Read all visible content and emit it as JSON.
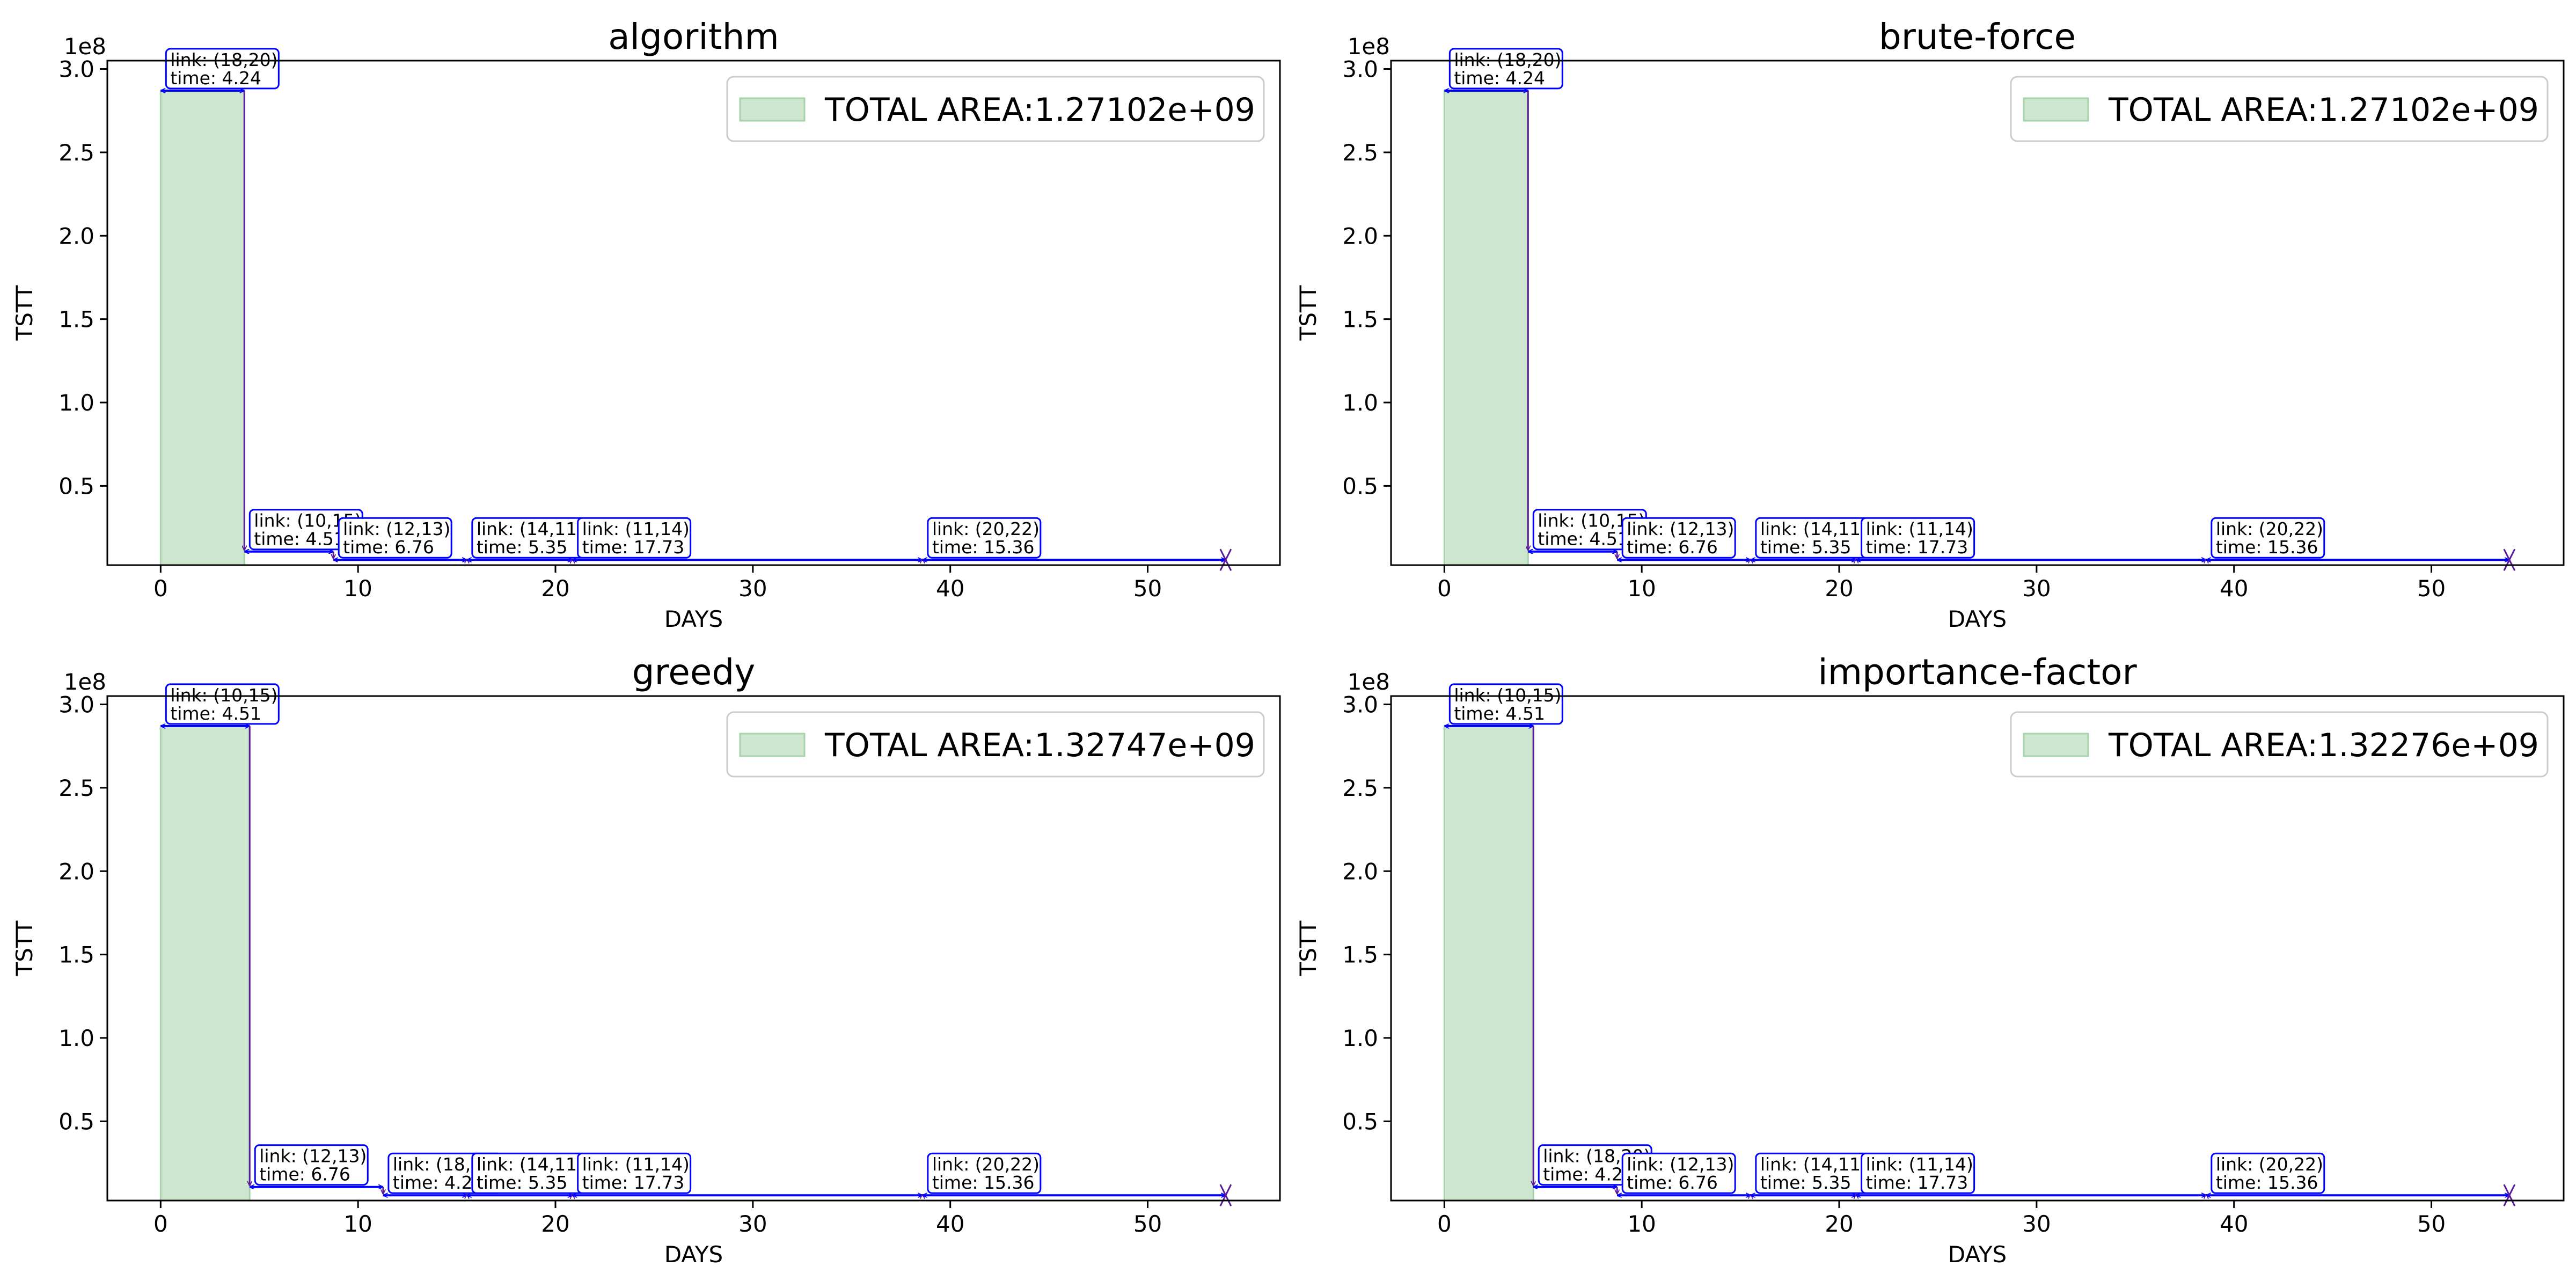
{
  "chart_data": [
    {
      "type": "area",
      "title": "algorithm",
      "xlabel": "DAYS",
      "ylabel": "TSTT",
      "y_offset_label": "1e8",
      "xlim": [
        -2.7,
        56.7
      ],
      "ylim": [
        2500000,
        305000000
      ],
      "xticks": [
        0,
        10,
        20,
        30,
        40,
        50
      ],
      "yticks": [
        0.5,
        1.0,
        1.5,
        2.0,
        2.5,
        3.0
      ],
      "ytick_labels": [
        "0.5",
        "1.0",
        "1.5",
        "2.0",
        "2.5",
        "3.0"
      ],
      "area": {
        "x0": 0,
        "x1": 4.24,
        "y": 287000000
      },
      "legend": {
        "label": "TOTAL AREA:1.27102e+09",
        "location": "upper right"
      },
      "steps": [
        {
          "link": "link: (18,20)",
          "time": "time: 4.24",
          "start": 0,
          "end": 4.24,
          "y": 287000000
        },
        {
          "link": "link: (10,15)",
          "time": "time: 4.51",
          "start": 4.24,
          "end": 8.75,
          "y": 10000000
        },
        {
          "link": "link: (12,13)",
          "time": "time: 6.76",
          "start": 8.75,
          "end": 15.51,
          "y": 5000000
        },
        {
          "link": "link: (14,11)",
          "time": "time: 5.35",
          "start": 15.51,
          "end": 20.86,
          "y": 5000000
        },
        {
          "link": "link: (11,14)",
          "time": "time: 17.73",
          "start": 20.86,
          "end": 38.59,
          "y": 5000000
        },
        {
          "link": "link: (20,22)",
          "time": "time: 15.36",
          "start": 38.59,
          "end": 53.95,
          "y": 5000000
        }
      ]
    },
    {
      "type": "area",
      "title": "brute-force",
      "xlabel": "DAYS",
      "ylabel": "TSTT",
      "y_offset_label": "1e8",
      "xlim": [
        -2.7,
        56.7
      ],
      "ylim": [
        2500000,
        305000000
      ],
      "xticks": [
        0,
        10,
        20,
        30,
        40,
        50
      ],
      "yticks": [
        0.5,
        1.0,
        1.5,
        2.0,
        2.5,
        3.0
      ],
      "ytick_labels": [
        "0.5",
        "1.0",
        "1.5",
        "2.0",
        "2.5",
        "3.0"
      ],
      "area": {
        "x0": 0,
        "x1": 4.24,
        "y": 287000000
      },
      "legend": {
        "label": "TOTAL AREA:1.27102e+09",
        "location": "upper right"
      },
      "steps": [
        {
          "link": "link: (18,20)",
          "time": "time: 4.24",
          "start": 0,
          "end": 4.24,
          "y": 287000000
        },
        {
          "link": "link: (10,15)",
          "time": "time: 4.51",
          "start": 4.24,
          "end": 8.75,
          "y": 10000000
        },
        {
          "link": "link: (12,13)",
          "time": "time: 6.76",
          "start": 8.75,
          "end": 15.51,
          "y": 5000000
        },
        {
          "link": "link: (14,11)",
          "time": "time: 5.35",
          "start": 15.51,
          "end": 20.86,
          "y": 5000000
        },
        {
          "link": "link: (11,14)",
          "time": "time: 17.73",
          "start": 20.86,
          "end": 38.59,
          "y": 5000000
        },
        {
          "link": "link: (20,22)",
          "time": "time: 15.36",
          "start": 38.59,
          "end": 53.95,
          "y": 5000000
        }
      ]
    },
    {
      "type": "area",
      "title": "greedy",
      "xlabel": "DAYS",
      "ylabel": "TSTT",
      "y_offset_label": "1e8",
      "xlim": [
        -2.7,
        56.7
      ],
      "ylim": [
        2500000,
        305000000
      ],
      "xticks": [
        0,
        10,
        20,
        30,
        40,
        50
      ],
      "yticks": [
        0.5,
        1.0,
        1.5,
        2.0,
        2.5,
        3.0
      ],
      "ytick_labels": [
        "0.5",
        "1.0",
        "1.5",
        "2.0",
        "2.5",
        "3.0"
      ],
      "area": {
        "x0": 0,
        "x1": 4.51,
        "y": 287000000
      },
      "legend": {
        "label": "TOTAL AREA:1.32747e+09",
        "location": "upper right"
      },
      "steps": [
        {
          "link": "link: (10,15)",
          "time": "time: 4.51",
          "start": 0,
          "end": 4.51,
          "y": 287000000
        },
        {
          "link": "link: (12,13)",
          "time": "time: 6.76",
          "start": 4.51,
          "end": 11.27,
          "y": 10000000
        },
        {
          "link": "link: (18,20)",
          "time": "time: 4.24",
          "start": 11.27,
          "end": 15.51,
          "y": 5000000
        },
        {
          "link": "link: (14,11)",
          "time": "time: 5.35",
          "start": 15.51,
          "end": 20.86,
          "y": 5000000
        },
        {
          "link": "link: (11,14)",
          "time": "time: 17.73",
          "start": 20.86,
          "end": 38.59,
          "y": 5000000
        },
        {
          "link": "link: (20,22)",
          "time": "time: 15.36",
          "start": 38.59,
          "end": 53.95,
          "y": 5000000
        }
      ]
    },
    {
      "type": "area",
      "title": "importance-factor",
      "xlabel": "DAYS",
      "ylabel": "TSTT",
      "y_offset_label": "1e8",
      "xlim": [
        -2.7,
        56.7
      ],
      "ylim": [
        2500000,
        305000000
      ],
      "xticks": [
        0,
        10,
        20,
        30,
        40,
        50
      ],
      "yticks": [
        0.5,
        1.0,
        1.5,
        2.0,
        2.5,
        3.0
      ],
      "ytick_labels": [
        "0.5",
        "1.0",
        "1.5",
        "2.0",
        "2.5",
        "3.0"
      ],
      "area": {
        "x0": 0,
        "x1": 4.51,
        "y": 287000000
      },
      "legend": {
        "label": "TOTAL AREA:1.32276e+09",
        "location": "upper right"
      },
      "steps": [
        {
          "link": "link: (10,15)",
          "time": "time: 4.51",
          "start": 0,
          "end": 4.51,
          "y": 287000000
        },
        {
          "link": "link: (18,20)",
          "time": "time: 4.24",
          "start": 4.51,
          "end": 8.75,
          "y": 10000000
        },
        {
          "link": "link: (12,13)",
          "time": "time: 6.76",
          "start": 8.75,
          "end": 15.51,
          "y": 5000000
        },
        {
          "link": "link: (14,11)",
          "time": "time: 5.35",
          "start": 15.51,
          "end": 20.86,
          "y": 5000000
        },
        {
          "link": "link: (11,14)",
          "time": "time: 17.73",
          "start": 20.86,
          "end": 38.59,
          "y": 5000000
        },
        {
          "link": "link: (20,22)",
          "time": "time: 15.36",
          "start": 38.59,
          "end": 53.95,
          "y": 5000000
        }
      ]
    }
  ],
  "colors": {
    "area_fill": "#cde6cf",
    "area_edge": "#a6d3aa",
    "arrow": "#0000ff",
    "vertical": "#5a1a9a",
    "axis": "#000000",
    "legend_edge": "#cccccc"
  }
}
